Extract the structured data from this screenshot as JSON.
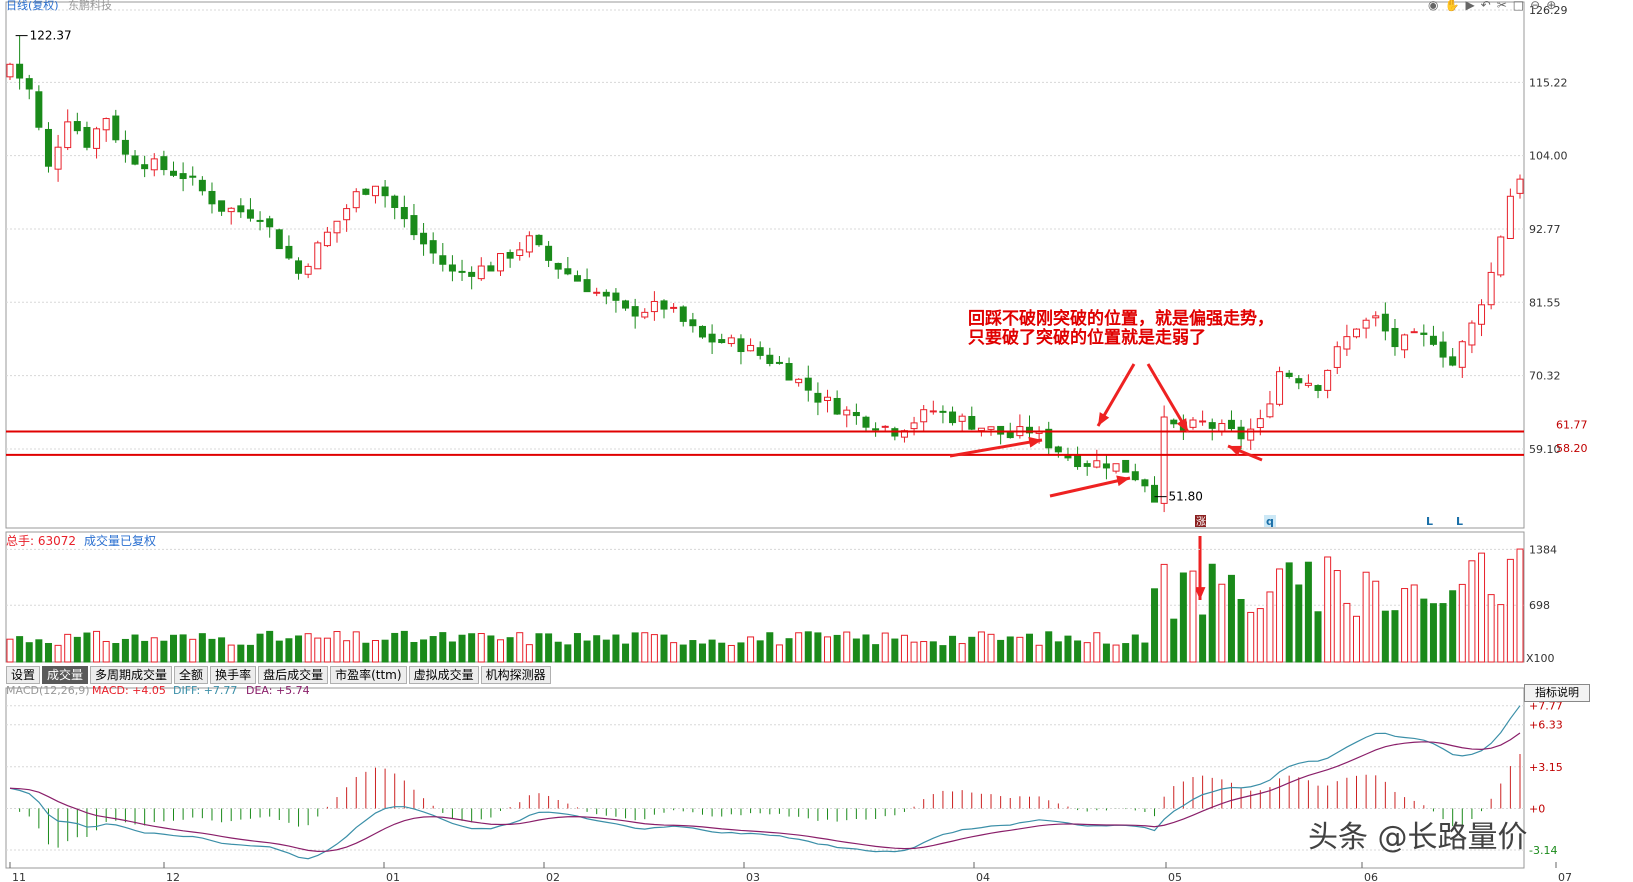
{
  "header": {
    "chart_title": "日线(复权)",
    "company": "东鹏科技",
    "volume_label": "总手: 63072",
    "volume_adj": "成交量已复权",
    "macd_label": "MACD(12,26,9)",
    "macd_value": "MACD: +4.05",
    "diff_value": "DIFF: +7.77",
    "dea_value": "DEA: +5.74"
  },
  "tabs": [
    "设置",
    "成交量",
    "多周期成交量",
    "全额",
    "换手率",
    "盘后成交量",
    "市盈率(ttm)",
    "虚拟成交量",
    "机构探测器"
  ],
  "active_tab": 1,
  "indicator_button": "指标说明",
  "annotation": "回踩不破刚突破的位置，就是偏强走势，只要破了突破的位置就是走弱了",
  "watermark": "头条 @长路量价",
  "markers": [
    "涨",
    "q",
    "L",
    "L"
  ],
  "colors": {
    "up": "#e8202a",
    "down": "#1a8a1a",
    "line_level": "#e00000",
    "diff": "#3b8fa8",
    "dea": "#8a1f6a"
  },
  "chart_data": {
    "type": "candlestick",
    "price_axis_ticks": [
      "126.29",
      "115.22",
      "104.00",
      "92.77",
      "81.55",
      "70.32",
      "59.10"
    ],
    "price_ylim": [
      47,
      126.29
    ],
    "volume_axis_ticks": [
      "1384",
      "698"
    ],
    "volume_unit": "X100",
    "macd_axis_ticks": [
      "+7.77",
      "+6.33",
      "+3.15",
      "+0",
      "-3.14"
    ],
    "x_month_labels": [
      "11",
      "12",
      "01",
      "02",
      "03",
      "04",
      "05",
      "06",
      "07"
    ],
    "levels": [
      {
        "value": 61.77,
        "label": "61.77"
      },
      {
        "value": 58.2,
        "label": "58.20"
      }
    ],
    "high_mark": {
      "value": 122.37,
      "label": "122.37"
    },
    "low_mark": {
      "value": 51.8,
      "label": "51.80"
    },
    "legend": [
      "DIFF",
      "DEA",
      "MACD"
    ]
  }
}
